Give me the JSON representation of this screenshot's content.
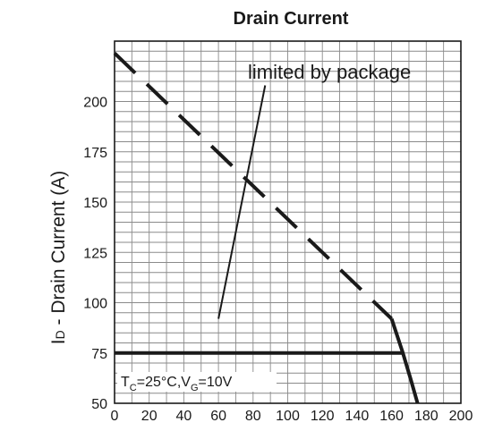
{
  "chart_data": {
    "type": "line",
    "title": "Drain Current",
    "ylabel_main": "I",
    "ylabel_sub": "D",
    "ylabel_rest": " - Drain Current (A)",
    "xlabel": "",
    "xlim": [
      0,
      200
    ],
    "ylim": [
      50,
      230
    ],
    "x_ticks": [
      0,
      20,
      40,
      60,
      80,
      100,
      120,
      140,
      160,
      180,
      200
    ],
    "x_tick_labels": [
      "0",
      "20",
      "40",
      "60",
      "80",
      "100",
      "120",
      "140",
      "160",
      "180",
      "200"
    ],
    "y_ticks": [
      50,
      75,
      100,
      125,
      150,
      175,
      200
    ],
    "y_tick_labels": [
      "50",
      "75",
      "100",
      "125",
      "150",
      "175",
      "200"
    ],
    "grid": true,
    "series": [
      {
        "style": "dashed-thick",
        "x": [
          0,
          160
        ],
        "y": [
          224,
          92
        ]
      },
      {
        "style": "thin",
        "x": [
          60,
          87
        ],
        "y": [
          92,
          208
        ]
      },
      {
        "style": "thick",
        "x": [
          0,
          166.5
        ],
        "y": [
          75,
          75
        ]
      },
      {
        "style": "thick-curve",
        "x": [
          160,
          166.5,
          171,
          175
        ],
        "y": [
          92,
          75,
          62,
          50
        ]
      }
    ],
    "annotations": {
      "package_text": "limited by package",
      "condition": {
        "t": "T",
        "t_sub": "C",
        "mid": "=25°C,V",
        "v_sub": "G",
        "end": "=10V"
      }
    }
  }
}
